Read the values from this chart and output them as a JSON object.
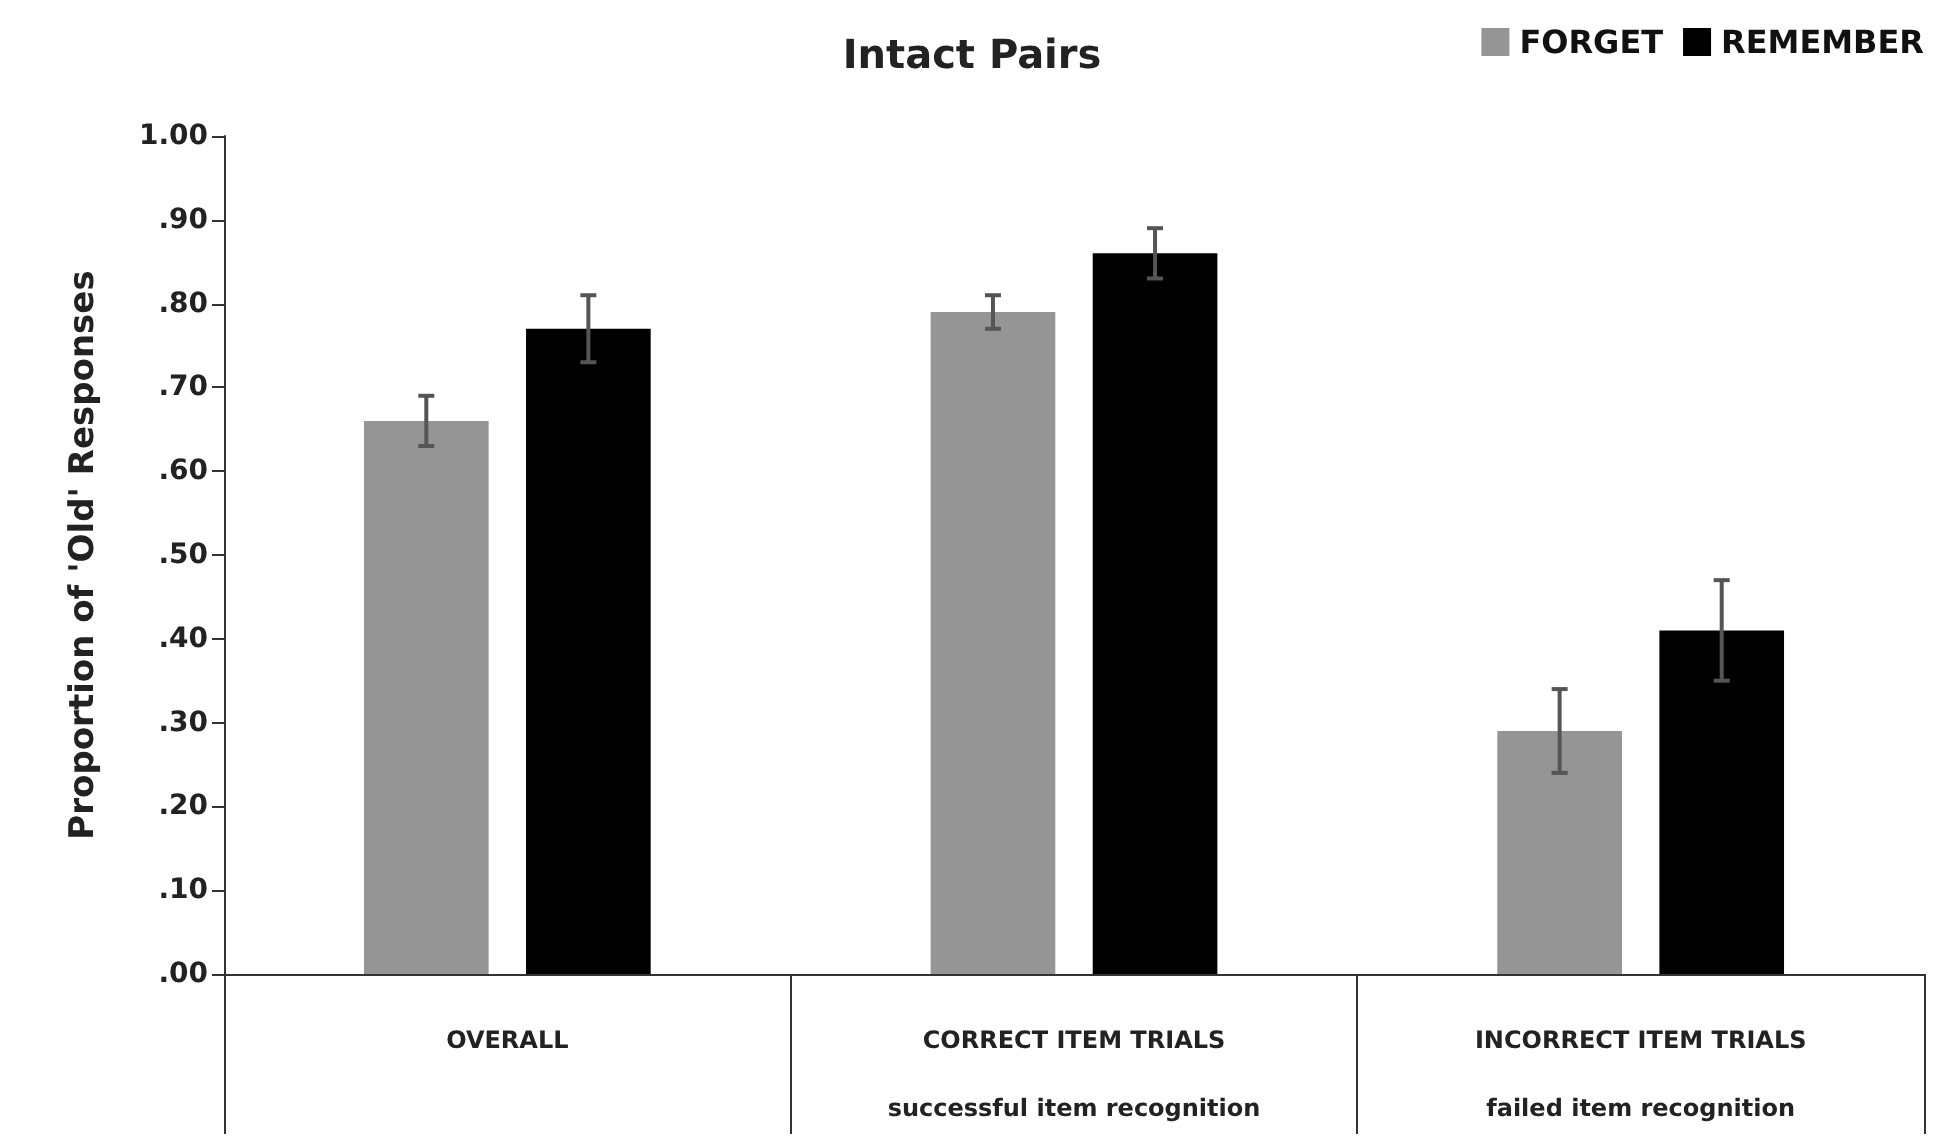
{
  "chart_data": {
    "type": "bar",
    "title": "Intact Pairs",
    "ylabel": "Proportion of 'Old' Responses",
    "categories": [
      "OVERALL",
      "CORRECT ITEM TRIALS\nsuccessful item recognition",
      "INCORRECT ITEM TRIALS\nfailed item recognition"
    ],
    "series": [
      {
        "name": "FORGET",
        "color": "#959595",
        "values": [
          0.66,
          0.79,
          0.29
        ],
        "errors": [
          [
            0.63,
            0.69
          ],
          [
            0.77,
            0.81
          ],
          [
            0.24,
            0.34
          ]
        ]
      },
      {
        "name": "REMEMBER",
        "color": "#000000",
        "values": [
          0.77,
          0.86,
          0.41
        ],
        "errors": [
          [
            0.73,
            0.81
          ],
          [
            0.83,
            0.89
          ],
          [
            0.35,
            0.47
          ]
        ]
      }
    ],
    "ylim": [
      0,
      1
    ],
    "yticks": [
      {
        "value": 0,
        "label": ".00"
      },
      {
        "value": 0.1,
        "label": ".10"
      },
      {
        "value": 0.2,
        "label": ".20"
      },
      {
        "value": 0.3,
        "label": ".30"
      },
      {
        "value": 0.4,
        "label": ".40"
      },
      {
        "value": 0.5,
        "label": ".50"
      },
      {
        "value": 0.6,
        "label": ".60"
      },
      {
        "value": 0.7,
        "label": ".70"
      },
      {
        "value": 0.8,
        "label": ".80"
      },
      {
        "value": 0.9,
        "label": ".90"
      },
      {
        "value": 1,
        "label": "1.00"
      }
    ],
    "grid": false,
    "legend": "top right"
  }
}
